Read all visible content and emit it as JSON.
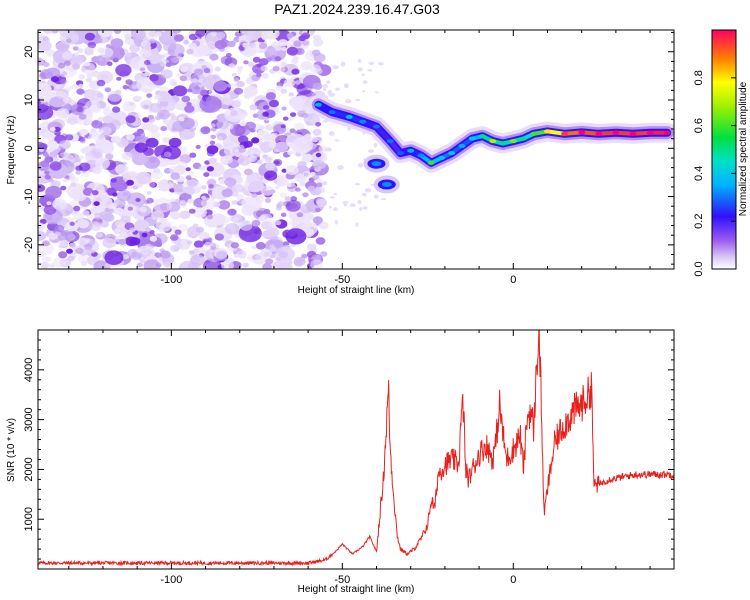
{
  "title": "PAZ1.2024.239.16.47.G03",
  "chart_data": [
    {
      "type": "heatmap",
      "xlabel": "Height of straight line (km)",
      "ylabel": "Frequency (Hz)",
      "xlim": [
        -139,
        47
      ],
      "ylim": [
        -25,
        24.5
      ],
      "xticks": [
        -100,
        -50,
        0
      ],
      "yticks": [
        -20,
        -10,
        0,
        10,
        20
      ],
      "colorbar": {
        "label": "Normalized spectral amplitude",
        "range": [
          0,
          1
        ],
        "ticks": [
          0.0,
          0.2,
          0.4,
          0.6,
          0.8
        ]
      },
      "signal_track": {
        "x": [
          -57,
          -53,
          -48,
          -44,
          -40,
          -36,
          -33,
          -30,
          -27,
          -24,
          -21,
          -18,
          -15,
          -12,
          -9,
          -6,
          -3,
          0,
          3,
          6,
          10,
          15,
          20,
          25,
          30,
          35,
          40,
          45
        ],
        "y": [
          9,
          7.5,
          6.5,
          5.5,
          4.5,
          1.5,
          -1,
          -0.5,
          -1.5,
          -3,
          -2,
          -1,
          0.5,
          2,
          2.5,
          1.5,
          1,
          1.5,
          2,
          3,
          3.5,
          3,
          3.3,
          3,
          3.2,
          3,
          3.2,
          3.2
        ],
        "amplitude": [
          0.25,
          0.2,
          0.28,
          0.22,
          0.2,
          0.2,
          0.18,
          0.25,
          0.22,
          0.5,
          0.3,
          0.3,
          0.25,
          0.3,
          0.4,
          0.6,
          0.4,
          0.55,
          0.4,
          0.5,
          0.7,
          0.85,
          0.95,
          0.9,
          1.0,
          0.9,
          1.0,
          0.95
        ]
      },
      "spurs": [
        {
          "x": -40,
          "y": -3.2,
          "amplitude": 0.22
        },
        {
          "x": -37,
          "y": -7.5,
          "amplitude": 0.22
        }
      ]
    },
    {
      "type": "line",
      "xlabel": "Height of straight line (km)",
      "ylabel": "SNR (10 * v/v)",
      "xlim": [
        -139,
        47
      ],
      "ylim": [
        0,
        4800
      ],
      "xticks": [
        -100,
        -50,
        0
      ],
      "yticks": [
        1000,
        2000,
        3000,
        4000
      ],
      "series": [
        {
          "color": "#e8201c",
          "points": [
            [
              -139,
              120
            ],
            [
              -120,
              120
            ],
            [
              -100,
              120
            ],
            [
              -80,
              120
            ],
            [
              -60,
              120
            ],
            [
              -55,
              180
            ],
            [
              -52,
              350
            ],
            [
              -50,
              500
            ],
            [
              -47,
              300
            ],
            [
              -44,
              450
            ],
            [
              -42,
              650
            ],
            [
              -40,
              350
            ],
            [
              -39,
              1100
            ],
            [
              -38,
              1800
            ],
            [
              -37,
              3000
            ],
            [
              -36.5,
              3650
            ],
            [
              -36,
              2400
            ],
            [
              -35,
              1500
            ],
            [
              -34,
              700
            ],
            [
              -33,
              400
            ],
            [
              -31,
              300
            ],
            [
              -29,
              400
            ],
            [
              -27,
              600
            ],
            [
              -25,
              900
            ],
            [
              -24,
              1400
            ],
            [
              -23,
              1200
            ],
            [
              -22,
              1900
            ],
            [
              -20,
              2100
            ],
            [
              -18,
              2200
            ],
            [
              -16,
              2100
            ],
            [
              -15,
              3200
            ],
            [
              -14.5,
              3250
            ],
            [
              -14,
              2000
            ],
            [
              -13,
              1800
            ],
            [
              -12,
              2000
            ],
            [
              -10,
              2300
            ],
            [
              -8,
              2500
            ],
            [
              -6,
              2200
            ],
            [
              -5,
              2600
            ],
            [
              -4,
              3300
            ],
            [
              -3,
              2700
            ],
            [
              -2,
              2200
            ],
            [
              0,
              2400
            ],
            [
              2,
              2700
            ],
            [
              3,
              2000
            ],
            [
              4,
              3000
            ],
            [
              5,
              3200
            ],
            [
              6,
              2800
            ],
            [
              7,
              4300
            ],
            [
              7.5,
              4800
            ],
            [
              8,
              3800
            ],
            [
              9,
              1100
            ],
            [
              10,
              1600
            ],
            [
              12,
              2500
            ],
            [
              14,
              2800
            ],
            [
              16,
              3000
            ],
            [
              18,
              3200
            ],
            [
              20,
              3300
            ],
            [
              22,
              3500
            ],
            [
              23,
              3700
            ],
            [
              23.5,
              1700
            ],
            [
              25,
              1700
            ],
            [
              28,
              1800
            ],
            [
              32,
              1850
            ],
            [
              36,
              1900
            ],
            [
              40,
              1900
            ],
            [
              44,
              1900
            ],
            [
              47,
              1900
            ]
          ]
        }
      ]
    }
  ]
}
